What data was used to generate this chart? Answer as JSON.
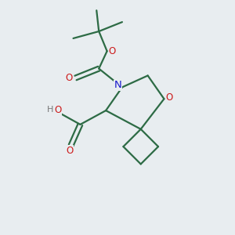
{
  "bg_color": "#e8edf0",
  "bond_color": "#2d6b45",
  "n_color": "#1a1acc",
  "o_color": "#cc1a1a",
  "h_color": "#777777",
  "line_width": 1.6,
  "fig_size": [
    3.0,
    3.0
  ],
  "dpi": 100,
  "xlim": [
    0,
    10
  ],
  "ylim": [
    0,
    10
  ]
}
